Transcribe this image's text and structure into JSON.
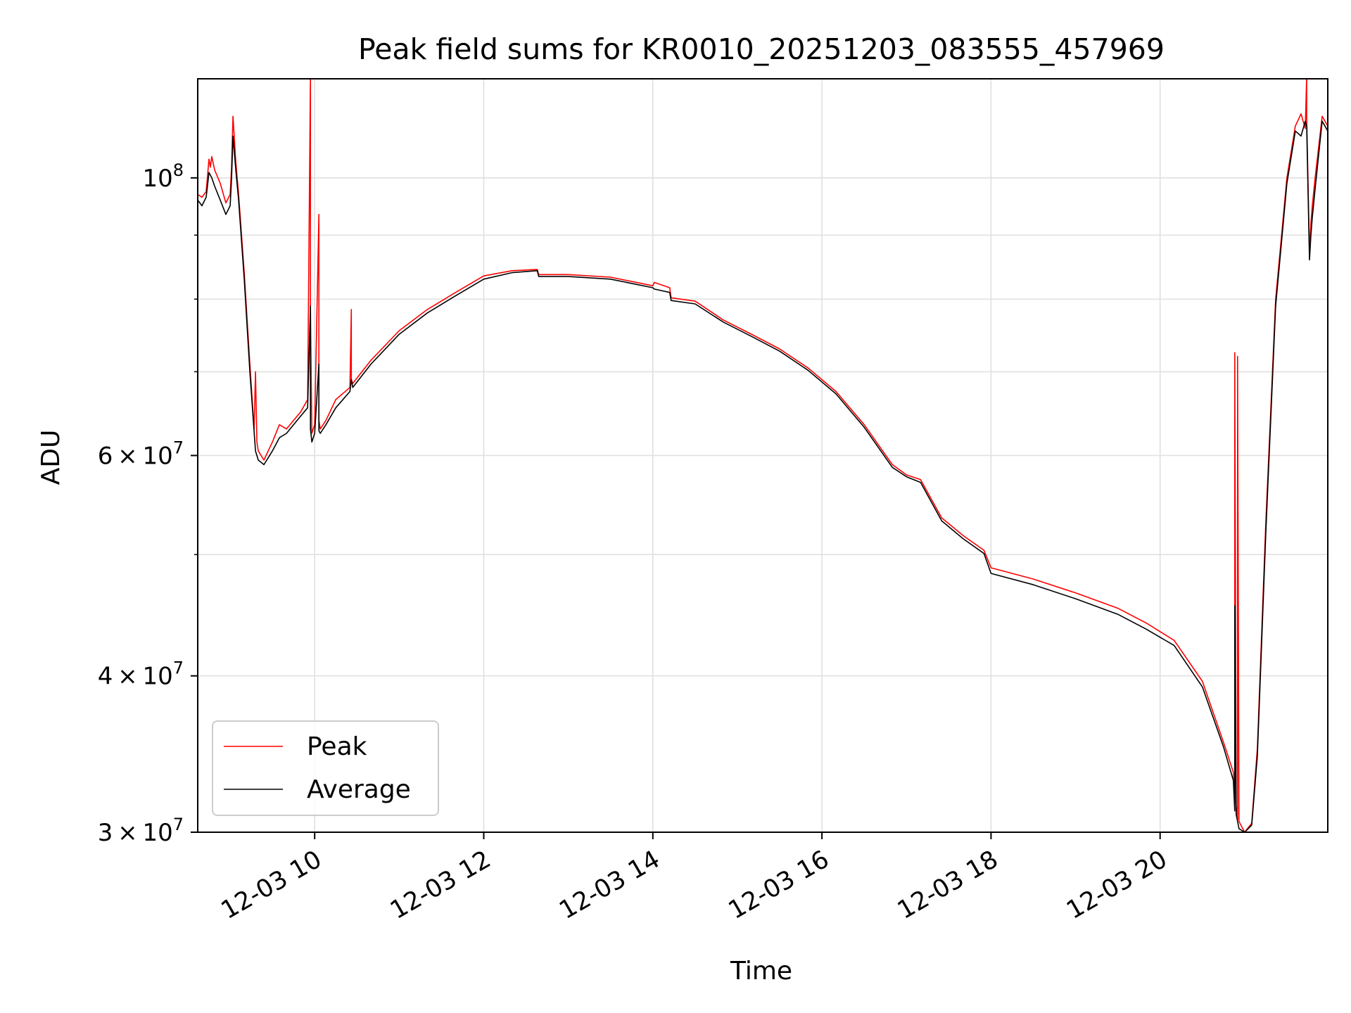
{
  "chart_data": {
    "type": "line",
    "title": "Peak field sums for KR0010_20251203_083555_457969",
    "xlabel": "Time",
    "ylabel": "ADU",
    "yscale": "log",
    "grid": true,
    "legend_position": "lower-left",
    "xlim": [
      "2025-12-03 08:37",
      "2025-12-03 21:59"
    ],
    "ylim": [
      30000000,
      120000000
    ],
    "x_ticks": [
      "2025-12-03 10:00",
      "2025-12-03 12:00",
      "2025-12-03 14:00",
      "2025-12-03 16:00",
      "2025-12-03 18:00",
      "2025-12-03 20:00"
    ],
    "x_tick_labels": [
      "12-03 10",
      "12-03 12",
      "12-03 14",
      "12-03 16",
      "12-03 18",
      "12-03 20"
    ],
    "y_ticks": [
      30000000,
      40000000,
      60000000,
      100000000
    ],
    "y_tick_labels": [
      {
        "mant": "3",
        "exp": "7"
      },
      {
        "mant": "4",
        "exp": "7"
      },
      {
        "mant": "6",
        "exp": "7"
      },
      {
        "mant": "",
        "exp": "8"
      }
    ],
    "y_minor_ticks": [
      50000000,
      70000000,
      80000000,
      90000000
    ],
    "series": [
      {
        "name": "Peak",
        "color": "#ff0000",
        "x": [
          "2025-12-03 08:37",
          "2025-12-03 08:40",
          "2025-12-03 08:43",
          "2025-12-03 08:45",
          "2025-12-03 08:46",
          "2025-12-03 08:47",
          "2025-12-03 08:49",
          "2025-12-03 08:53",
          "2025-12-03 08:57",
          "2025-12-03 09:00",
          "2025-12-03 09:01",
          "2025-12-03 09:02",
          "2025-12-03 09:04",
          "2025-12-03 09:06",
          "2025-12-03 09:10",
          "2025-12-03 09:14",
          "2025-12-03 09:17",
          "2025-12-03 09:18",
          "2025-12-03 09:19",
          "2025-12-03 09:20",
          "2025-12-03 09:24",
          "2025-12-03 09:30",
          "2025-12-03 09:35",
          "2025-12-03 09:40",
          "2025-12-03 09:45",
          "2025-12-03 09:50",
          "2025-12-03 09:55",
          "2025-12-03 09:57",
          "2025-12-03 09:57",
          "2025-12-03 09:58",
          "2025-12-03 10:00",
          "2025-12-03 10:03",
          "2025-12-03 10:03",
          "2025-12-03 10:04",
          "2025-12-03 10:08",
          "2025-12-03 10:15",
          "2025-12-03 10:25",
          "2025-12-03 10:26",
          "2025-12-03 10:26",
          "2025-12-03 10:27",
          "2025-12-03 10:40",
          "2025-12-03 11:00",
          "2025-12-03 11:20",
          "2025-12-03 11:40",
          "2025-12-03 12:00",
          "2025-12-03 12:20",
          "2025-12-03 12:38",
          "2025-12-03 12:39",
          "2025-12-03 13:00",
          "2025-12-03 13:30",
          "2025-12-03 14:00",
          "2025-12-03 14:01",
          "2025-12-03 14:12",
          "2025-12-03 14:13",
          "2025-12-03 14:30",
          "2025-12-03 14:50",
          "2025-12-03 15:10",
          "2025-12-03 15:30",
          "2025-12-03 15:50",
          "2025-12-03 16:10",
          "2025-12-03 16:30",
          "2025-12-03 16:50",
          "2025-12-03 17:00",
          "2025-12-03 17:10",
          "2025-12-03 17:25",
          "2025-12-03 17:40",
          "2025-12-03 17:55",
          "2025-12-03 18:00",
          "2025-12-03 18:30",
          "2025-12-03 19:00",
          "2025-12-03 19:30",
          "2025-12-03 19:50",
          "2025-12-03 20:10",
          "2025-12-03 20:30",
          "2025-12-03 20:45",
          "2025-12-03 20:52",
          "2025-12-03 20:53",
          "2025-12-03 20:53",
          "2025-12-03 20:54",
          "2025-12-03 20:55",
          "2025-12-03 20:55",
          "2025-12-03 20:56",
          "2025-12-03 21:00",
          "2025-12-03 21:05",
          "2025-12-03 21:09",
          "2025-12-03 21:15",
          "2025-12-03 21:22",
          "2025-12-03 21:30",
          "2025-12-03 21:36",
          "2025-12-03 21:40",
          "2025-12-03 21:43",
          "2025-12-03 21:44",
          "2025-12-03 21:44",
          "2025-12-03 21:46",
          "2025-12-03 21:47",
          "2025-12-03 21:48",
          "2025-12-03 21:50",
          "2025-12-03 21:55",
          "2025-12-03 21:59"
        ],
        "y": [
          97000000,
          96500000,
          97500000,
          103500000,
          102000000,
          104000000,
          101500000,
          99000000,
          95500000,
          97000000,
          102000000,
          112000000,
          103000000,
          97000000,
          84000000,
          71000000,
          63000000,
          70000000,
          61500000,
          60500000,
          59500000,
          61500000,
          63500000,
          63000000,
          64000000,
          65000000,
          66500000,
          121000000,
          79000000,
          62500000,
          63500000,
          93500000,
          64000000,
          63000000,
          64000000,
          66500000,
          68000000,
          78500000,
          69000000,
          68500000,
          71500000,
          75500000,
          78500000,
          81000000,
          83500000,
          84300000,
          84500000,
          83700000,
          83700000,
          83300000,
          82000000,
          82500000,
          81700000,
          80200000,
          79700000,
          77000000,
          75000000,
          73000000,
          70500000,
          67500000,
          63500000,
          59000000,
          57900000,
          57400000,
          53500000,
          51800000,
          50400000,
          48800000,
          47800000,
          46600000,
          45300000,
          44100000,
          42700000,
          39600000,
          35400000,
          33500000,
          31600000,
          72500000,
          31500000,
          30700000,
          72000000,
          30600000,
          30000000,
          30500000,
          35000000,
          53000000,
          80000000,
          100000000,
          110000000,
          112500000,
          109500000,
          120500000,
          112000000,
          87000000,
          92000000,
          95000000,
          100000000,
          112000000,
          110000000
        ]
      },
      {
        "name": "Average",
        "color": "#000000",
        "x": [
          "2025-12-03 08:37",
          "2025-12-03 08:40",
          "2025-12-03 08:43",
          "2025-12-03 08:45",
          "2025-12-03 08:47",
          "2025-12-03 08:49",
          "2025-12-03 08:53",
          "2025-12-03 08:57",
          "2025-12-03 09:00",
          "2025-12-03 09:01",
          "2025-12-03 09:02",
          "2025-12-03 09:04",
          "2025-12-03 09:06",
          "2025-12-03 09:10",
          "2025-12-03 09:14",
          "2025-12-03 09:18",
          "2025-12-03 09:20",
          "2025-12-03 09:24",
          "2025-12-03 09:30",
          "2025-12-03 09:35",
          "2025-12-03 09:40",
          "2025-12-03 09:45",
          "2025-12-03 09:50",
          "2025-12-03 09:55",
          "2025-12-03 09:57",
          "2025-12-03 09:57",
          "2025-12-03 09:58",
          "2025-12-03 10:00",
          "2025-12-03 10:03",
          "2025-12-03 10:03",
          "2025-12-03 10:04",
          "2025-12-03 10:08",
          "2025-12-03 10:15",
          "2025-12-03 10:25",
          "2025-12-03 10:26",
          "2025-12-03 10:27",
          "2025-12-03 10:40",
          "2025-12-03 11:00",
          "2025-12-03 11:20",
          "2025-12-03 11:40",
          "2025-12-03 12:00",
          "2025-12-03 12:20",
          "2025-12-03 12:38",
          "2025-12-03 12:39",
          "2025-12-03 13:00",
          "2025-12-03 13:30",
          "2025-12-03 14:00",
          "2025-12-03 14:01",
          "2025-12-03 14:12",
          "2025-12-03 14:13",
          "2025-12-03 14:30",
          "2025-12-03 14:50",
          "2025-12-03 15:10",
          "2025-12-03 15:30",
          "2025-12-03 15:50",
          "2025-12-03 16:10",
          "2025-12-03 16:30",
          "2025-12-03 16:50",
          "2025-12-03 17:00",
          "2025-12-03 17:10",
          "2025-12-03 17:25",
          "2025-12-03 17:40",
          "2025-12-03 17:55",
          "2025-12-03 18:00",
          "2025-12-03 18:30",
          "2025-12-03 19:00",
          "2025-12-03 19:30",
          "2025-12-03 19:50",
          "2025-12-03 20:10",
          "2025-12-03 20:30",
          "2025-12-03 20:45",
          "2025-12-03 20:52",
          "2025-12-03 20:53",
          "2025-12-03 20:53",
          "2025-12-03 20:54",
          "2025-12-03 20:56",
          "2025-12-03 21:00",
          "2025-12-03 21:05",
          "2025-12-03 21:09",
          "2025-12-03 21:15",
          "2025-12-03 21:22",
          "2025-12-03 21:30",
          "2025-12-03 21:36",
          "2025-12-03 21:40",
          "2025-12-03 21:43",
          "2025-12-03 21:44",
          "2025-12-03 21:46",
          "2025-12-03 21:47",
          "2025-12-03 21:48",
          "2025-12-03 21:50",
          "2025-12-03 21:55",
          "2025-12-03 21:59"
        ],
        "y": [
          96000000,
          95000000,
          96500000,
          101000000,
          100000000,
          98500000,
          96000000,
          93500000,
          95000000,
          100000000,
          108000000,
          101500000,
          96000000,
          83000000,
          70000000,
          60500000,
          59500000,
          59000000,
          60500000,
          62000000,
          62500000,
          63500000,
          64500000,
          65500000,
          79000000,
          63000000,
          61500000,
          62500000,
          71000000,
          62800000,
          62500000,
          63500000,
          65500000,
          67500000,
          69000000,
          68000000,
          71000000,
          75000000,
          78000000,
          80500000,
          83000000,
          84000000,
          84300000,
          83400000,
          83400000,
          83000000,
          81700000,
          81500000,
          81000000,
          79800000,
          79300000,
          76700000,
          74700000,
          72700000,
          70200000,
          67200000,
          63200000,
          58700000,
          57700000,
          57100000,
          53200000,
          51500000,
          50100000,
          48300000,
          47300000,
          46100000,
          44800000,
          43600000,
          42300000,
          39200000,
          35100000,
          33000000,
          31200000,
          45500000,
          31000000,
          30200000,
          30000000,
          30400000,
          34500000,
          52000000,
          79000000,
          99000000,
          109000000,
          108000000,
          111000000,
          110000000,
          86000000,
          90000000,
          93000000,
          98000000,
          111000000,
          109000000
        ]
      }
    ]
  }
}
